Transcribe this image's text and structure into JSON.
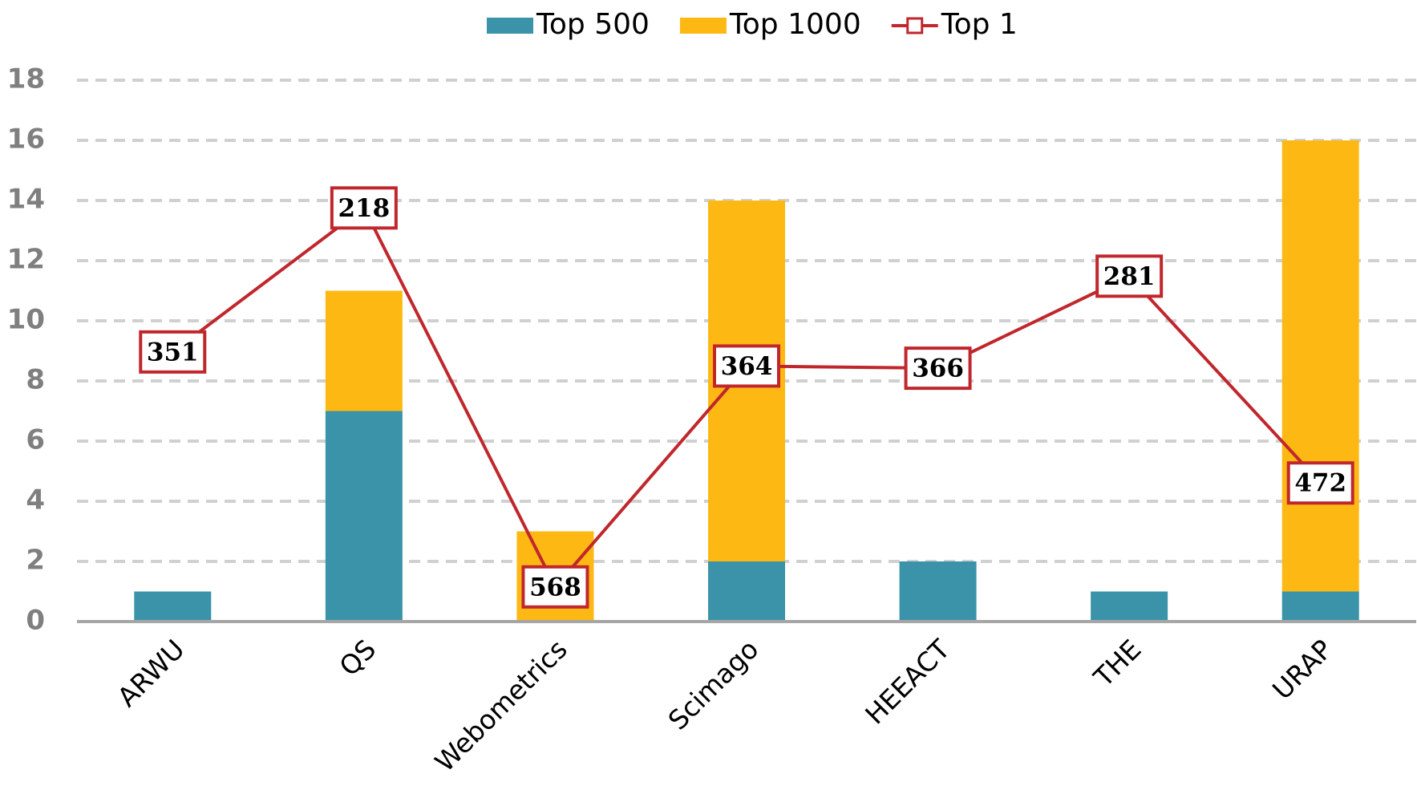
{
  "chart_data": {
    "type": "bar",
    "stacked": true,
    "categories": [
      "ARWU",
      "QS",
      "Webometrics",
      "Scimago",
      "HEEACT",
      "THE",
      "URAP"
    ],
    "series": [
      {
        "name": "Top 500",
        "color": "#3a93a8",
        "type": "bar",
        "values": [
          1,
          7,
          0,
          2,
          2,
          1,
          1
        ]
      },
      {
        "name": "Top 1000",
        "color": "#fdb813",
        "type": "bar",
        "values": [
          0,
          4,
          3,
          12,
          0,
          0,
          15
        ]
      },
      {
        "name": "Top 1",
        "color": "#c0272d",
        "type": "line",
        "axis": "y2",
        "values": [
          351,
          218,
          568,
          364,
          366,
          281,
          472
        ]
      }
    ],
    "ylim": [
      0,
      18
    ],
    "yticks": [
      0,
      2,
      4,
      6,
      8,
      10,
      12,
      14,
      16,
      18
    ],
    "y2lim": [
      600,
      100
    ],
    "grid": true,
    "legend": "top"
  }
}
